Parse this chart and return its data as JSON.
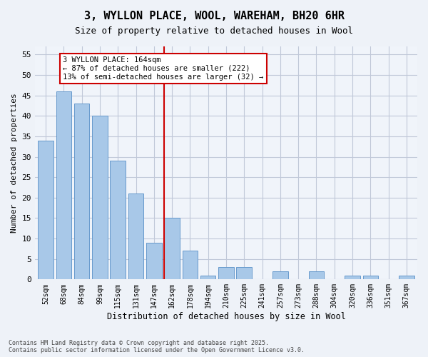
{
  "title": "3, WYLLON PLACE, WOOL, WAREHAM, BH20 6HR",
  "subtitle": "Size of property relative to detached houses in Wool",
  "xlabel": "Distribution of detached houses by size in Wool",
  "ylabel": "Number of detached properties",
  "categories": [
    "52sqm",
    "68sqm",
    "84sqm",
    "99sqm",
    "115sqm",
    "131sqm",
    "147sqm",
    "162sqm",
    "178sqm",
    "194sqm",
    "210sqm",
    "225sqm",
    "241sqm",
    "257sqm",
    "273sqm",
    "288sqm",
    "304sqm",
    "320sqm",
    "336sqm",
    "351sqm",
    "367sqm"
  ],
  "values": [
    34,
    46,
    43,
    40,
    29,
    21,
    9,
    15,
    7,
    1,
    3,
    3,
    0,
    2,
    0,
    2,
    0,
    1,
    1,
    0,
    1
  ],
  "bar_color": "#a8c8e8",
  "bar_edge_color": "#6699cc",
  "ref_line_x": 6.575,
  "annotation_text": "3 WYLLON PLACE: 164sqm\n← 87% of detached houses are smaller (222)\n13% of semi-detached houses are larger (32) →",
  "annotation_box_color": "#ffffff",
  "annotation_box_edge_color": "#cc0000",
  "footer": "Contains HM Land Registry data © Crown copyright and database right 2025.\nContains public sector information licensed under the Open Government Licence v3.0.",
  "bg_color": "#eef2f8",
  "plot_bg_color": "#f0f4fa",
  "grid_color": "#c0c8d8",
  "ylim": [
    0,
    57
  ],
  "yticks": [
    0,
    5,
    10,
    15,
    20,
    25,
    30,
    35,
    40,
    45,
    50,
    55
  ]
}
